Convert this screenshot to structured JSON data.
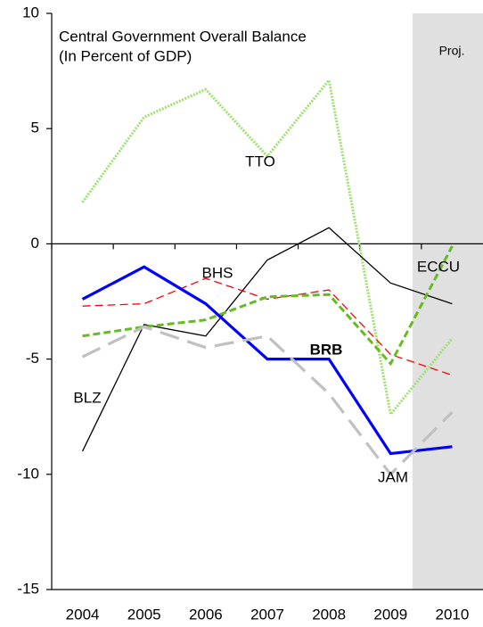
{
  "chart_data": {
    "type": "line",
    "title": "Central Government Overall Balance",
    "subtitle": "(In Percent of GDP)",
    "annotation": "Proj.",
    "categories": [
      "2004",
      "2005",
      "2006",
      "2007",
      "2008",
      "2009",
      "2010"
    ],
    "ylim": [
      -15,
      10
    ],
    "yticks": [
      -15,
      -10,
      -5,
      0,
      5,
      10
    ],
    "series": [
      {
        "name": "TTO",
        "color": "#9fe070",
        "values": [
          1.8,
          5.5,
          6.7,
          3.8,
          7.1,
          -7.4,
          -4.1
        ]
      },
      {
        "name": "BLZ",
        "color": "#000000",
        "values": [
          -9.0,
          -3.5,
          -4.0,
          -0.7,
          0.7,
          -1.7,
          -2.6
        ]
      },
      {
        "name": "BHS",
        "color": "#ff0000",
        "values": [
          -2.7,
          -2.6,
          -1.5,
          -2.4,
          -2.0,
          -4.8,
          -5.7
        ]
      },
      {
        "name": "ECCU",
        "color": "#66bb22",
        "values": [
          -4.0,
          -3.6,
          -3.3,
          -2.3,
          -2.2,
          -5.2,
          -0.1
        ]
      },
      {
        "name": "BRB",
        "color": "#0000ff",
        "values": [
          -2.4,
          -1.0,
          -2.6,
          -5.0,
          -5.0,
          -9.1,
          -8.8
        ]
      },
      {
        "name": "JAM",
        "color": "#c0c0c0",
        "values": [
          -4.9,
          -3.6,
          -4.5,
          -4.0,
          -6.5,
          -10.0,
          -7.3
        ]
      }
    ]
  }
}
